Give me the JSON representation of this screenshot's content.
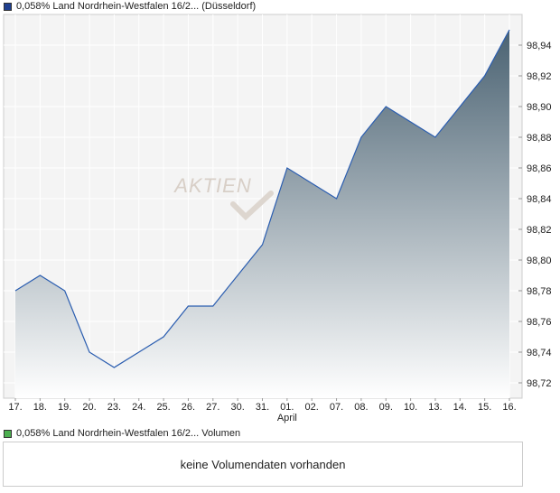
{
  "price_legend": {
    "label": "0,058% Land Nordrhein-Westfalen 16/2... (Düsseldorf)",
    "color": "#1f3f8f"
  },
  "volume_legend": {
    "label": "0,058% Land Nordrhein-Westfalen 16/2... Volumen",
    "color": "#4caf50"
  },
  "volume_message": "keine Volumendaten vorhanden",
  "watermark": "AKTIEN",
  "chart_data": {
    "type": "area",
    "x": [
      "17.",
      "18.",
      "19.",
      "20.",
      "23.",
      "24.",
      "25.",
      "26.",
      "27.",
      "30.",
      "31.",
      "01.",
      "02.",
      "07.",
      "08.",
      "09.",
      "10.",
      "13.",
      "14.",
      "15.",
      "16."
    ],
    "month_label": {
      "at": "01.",
      "text": "April"
    },
    "values": [
      98.78,
      98.79,
      98.78,
      98.74,
      98.73,
      98.74,
      98.75,
      98.77,
      98.77,
      98.79,
      98.81,
      98.86,
      98.85,
      98.84,
      98.88,
      98.9,
      98.89,
      98.88,
      98.9,
      98.92,
      98.95
    ],
    "yticks": [
      98.72,
      98.74,
      98.76,
      98.78,
      98.8,
      98.82,
      98.84,
      98.86,
      98.88,
      98.9,
      98.92,
      98.94
    ],
    "ytick_labels": [
      "98,72",
      "98,74",
      "98,76",
      "98,78",
      "98,80",
      "98,82",
      "98,84",
      "98,86",
      "98,88",
      "98,90",
      "98,92",
      "98,94"
    ],
    "ylim": [
      98.71,
      98.96
    ],
    "grid": true,
    "line_color": "#2a5db0",
    "fill_top_color": "#4a6272",
    "fill_bottom_color": "#ffffff"
  }
}
